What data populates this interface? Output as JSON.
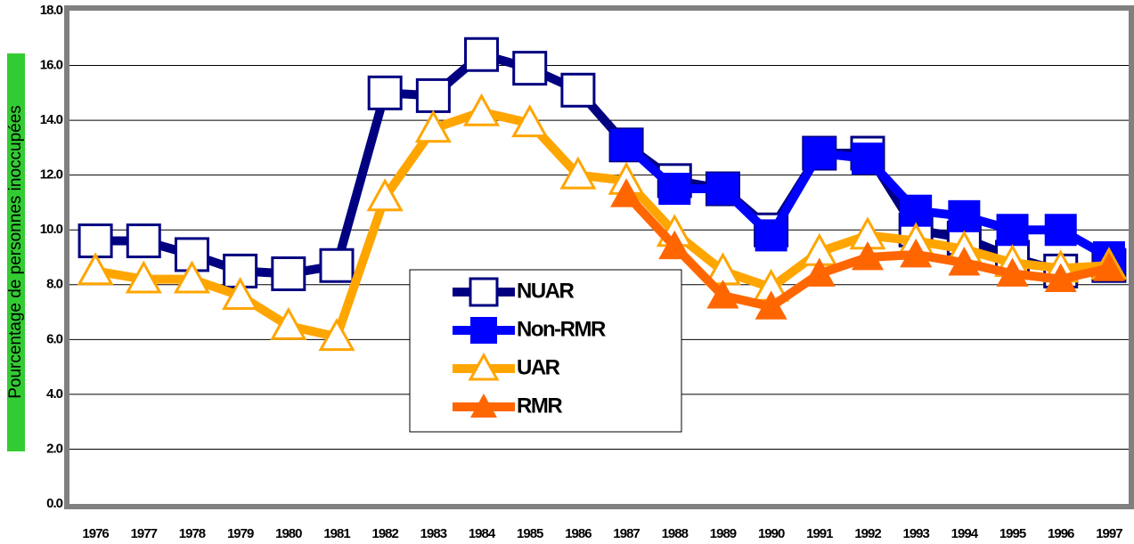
{
  "chart_data": {
    "type": "line",
    "y_label": "Pourcentage de personnes inoccupées",
    "categories": [
      "1976",
      "1977",
      "1978",
      "1979",
      "1980",
      "1981",
      "1982",
      "1983",
      "1984",
      "1985",
      "1986",
      "1987",
      "1988",
      "1989",
      "1990",
      "1991",
      "1992",
      "1993",
      "1994",
      "1995",
      "1996",
      "1997"
    ],
    "series": [
      {
        "name": "NUAR",
        "color": "#000080",
        "marker": "square",
        "filled": false,
        "values": [
          9.6,
          9.6,
          9.1,
          8.5,
          8.4,
          8.7,
          15.0,
          14.9,
          16.4,
          15.9,
          15.1,
          13.1,
          11.8,
          11.5,
          10.0,
          12.8,
          12.8,
          10.0,
          9.7,
          9.0,
          8.5,
          8.7
        ]
      },
      {
        "name": "Non-RMR",
        "color": "#0000ff",
        "marker": "square",
        "filled": true,
        "values": [
          null,
          null,
          null,
          null,
          null,
          null,
          null,
          null,
          null,
          null,
          null,
          13.1,
          11.5,
          11.5,
          9.8,
          12.8,
          12.6,
          10.7,
          10.5,
          10.0,
          10.0,
          9.0
        ]
      },
      {
        "name": "UAR",
        "color": "#ffa500",
        "marker": "triangle",
        "filled": false,
        "values": [
          8.5,
          8.2,
          8.2,
          7.6,
          6.5,
          6.1,
          11.2,
          13.7,
          14.3,
          13.9,
          12.0,
          11.8,
          9.9,
          8.5,
          7.9,
          9.2,
          9.8,
          9.6,
          9.3,
          8.8,
          8.6,
          8.7
        ]
      },
      {
        "name": "RMR",
        "color": "#ff6600",
        "marker": "triangle",
        "filled": true,
        "values": [
          null,
          null,
          null,
          null,
          null,
          null,
          null,
          null,
          null,
          null,
          null,
          11.3,
          9.4,
          7.6,
          7.2,
          8.4,
          9.0,
          9.1,
          8.8,
          8.4,
          8.2,
          8.6
        ]
      }
    ],
    "ylim": [
      0,
      18
    ],
    "yticks": [
      {
        "value": 0,
        "label": "0.0"
      },
      {
        "value": 2,
        "label": "2.0"
      },
      {
        "value": 4,
        "label": "4.0"
      },
      {
        "value": 6,
        "label": "6.0"
      },
      {
        "value": 8,
        "label": "8.0"
      },
      {
        "value": 10,
        "label": "10.0"
      },
      {
        "value": 12,
        "label": "12.0"
      },
      {
        "value": 14,
        "label": "14.0"
      },
      {
        "value": 16,
        "label": "16.0"
      },
      {
        "value": 18,
        "label": "18.0"
      }
    ],
    "grid": true
  }
}
